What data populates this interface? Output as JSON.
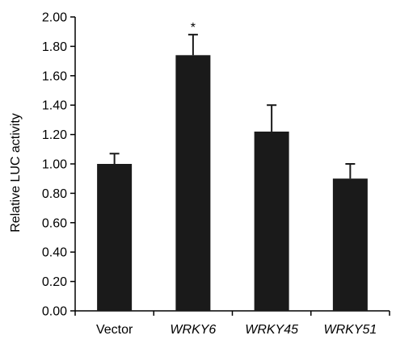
{
  "chart_data": {
    "type": "bar",
    "title": "",
    "xlabel": "",
    "ylabel": "Relative LUC activity",
    "ylim": [
      0,
      2.0
    ],
    "yticks": [
      "0.00",
      "0.20",
      "0.40",
      "0.60",
      "0.80",
      "1.00",
      "1.20",
      "1.40",
      "1.60",
      "1.80",
      "2.00"
    ],
    "categories": [
      "Vector",
      "WRKY6",
      "WRKY45",
      "WRKY51"
    ],
    "italic_categories": [
      false,
      true,
      true,
      true
    ],
    "values": [
      1.0,
      1.74,
      1.22,
      0.9
    ],
    "errors": [
      0.07,
      0.14,
      0.18,
      0.1
    ],
    "significance": [
      "",
      "*",
      "",
      ""
    ],
    "bar_color": "#1a1a1a",
    "grid": false
  }
}
